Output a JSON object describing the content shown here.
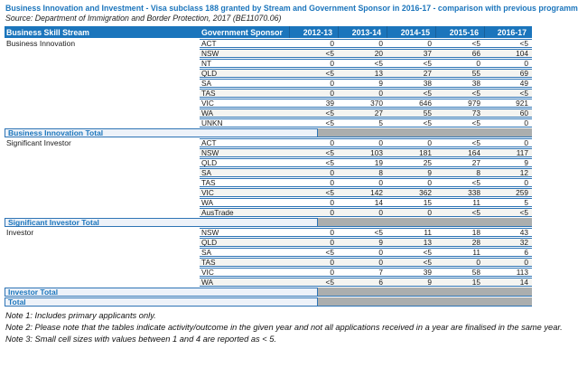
{
  "title": "Business Innovation and Investment - Visa subclass 188 granted by Stream and Government Sponsor in 2016-17 - comparison with previous programme year",
  "source": "Source: Department of Immigration and Border Protection, 2017 (BE11070.06)",
  "colors": {
    "header_bg": "#1b75bc",
    "row_border_blue": "#2e74b5",
    "total_label_bg": "#edf2f9",
    "total_label_text": "#1b75bc",
    "total_fill_gray": "#abaeae",
    "title_text": "#1b75bc"
  },
  "table": {
    "columns": [
      "Business Skill Stream",
      "Government Sponsor",
      "2012-13",
      "2013-14",
      "2014-15",
      "2015-16",
      "2016-17"
    ],
    "groups": [
      {
        "stream": "Business Innovation",
        "total_label": "Business Innovation Total",
        "rows": [
          {
            "sponsor": "ACT",
            "values": [
              "0",
              "0",
              "0",
              "<5",
              "<5"
            ]
          },
          {
            "sponsor": "NSW",
            "values": [
              "<5",
              "20",
              "37",
              "66",
              "104"
            ]
          },
          {
            "sponsor": "NT",
            "values": [
              "0",
              "<5",
              "<5",
              "0",
              "0"
            ]
          },
          {
            "sponsor": "QLD",
            "values": [
              "<5",
              "13",
              "27",
              "55",
              "69"
            ]
          },
          {
            "sponsor": "SA",
            "values": [
              "0",
              "9",
              "38",
              "38",
              "49"
            ]
          },
          {
            "sponsor": "TAS",
            "values": [
              "0",
              "0",
              "<5",
              "<5",
              "<5"
            ]
          },
          {
            "sponsor": "VIC",
            "values": [
              "39",
              "370",
              "646",
              "979",
              "921"
            ]
          },
          {
            "sponsor": "WA",
            "values": [
              "<5",
              "27",
              "55",
              "73",
              "60"
            ]
          },
          {
            "sponsor": "UNKN",
            "values": [
              "<5",
              "5",
              "<5",
              "<5",
              "0"
            ]
          }
        ]
      },
      {
        "stream": "Significant Investor",
        "total_label": "Significant Investor Total",
        "rows": [
          {
            "sponsor": "ACT",
            "values": [
              "0",
              "0",
              "0",
              "<5",
              "0"
            ]
          },
          {
            "sponsor": "NSW",
            "values": [
              "<5",
              "103",
              "181",
              "164",
              "117"
            ]
          },
          {
            "sponsor": "QLD",
            "values": [
              "<5",
              "19",
              "25",
              "27",
              "9"
            ]
          },
          {
            "sponsor": "SA",
            "values": [
              "0",
              "8",
              "9",
              "8",
              "12"
            ]
          },
          {
            "sponsor": "TAS",
            "values": [
              "0",
              "0",
              "0",
              "<5",
              "0"
            ]
          },
          {
            "sponsor": "VIC",
            "values": [
              "<5",
              "142",
              "362",
              "338",
              "259"
            ]
          },
          {
            "sponsor": "WA",
            "values": [
              "0",
              "14",
              "15",
              "11",
              "5"
            ]
          },
          {
            "sponsor": "AusTrade",
            "values": [
              "0",
              "0",
              "0",
              "<5",
              "<5"
            ]
          }
        ]
      },
      {
        "stream": "Investor",
        "total_label": "Investor Total",
        "rows": [
          {
            "sponsor": "NSW",
            "values": [
              "0",
              "<5",
              "11",
              "18",
              "43"
            ]
          },
          {
            "sponsor": "QLD",
            "values": [
              "0",
              "9",
              "13",
              "28",
              "32"
            ]
          },
          {
            "sponsor": "SA",
            "values": [
              "<5",
              "0",
              "<5",
              "11",
              "6"
            ]
          },
          {
            "sponsor": "TAS",
            "values": [
              "0",
              "0",
              "<5",
              "0",
              "0"
            ]
          },
          {
            "sponsor": "VIC",
            "values": [
              "0",
              "7",
              "39",
              "58",
              "113"
            ]
          },
          {
            "sponsor": "WA",
            "values": [
              "<5",
              "6",
              "9",
              "15",
              "14"
            ]
          }
        ]
      }
    ],
    "grand_total_label": "Total"
  },
  "notes": [
    "Note 1: Includes primary applicants only.",
    "Note 2: Please note that the tables indicate activity/outcome in the given year and not all applications received in a year are finalised in the same year.",
    "Note 3: Small cell sizes with values between 1 and 4 are reported as < 5."
  ]
}
